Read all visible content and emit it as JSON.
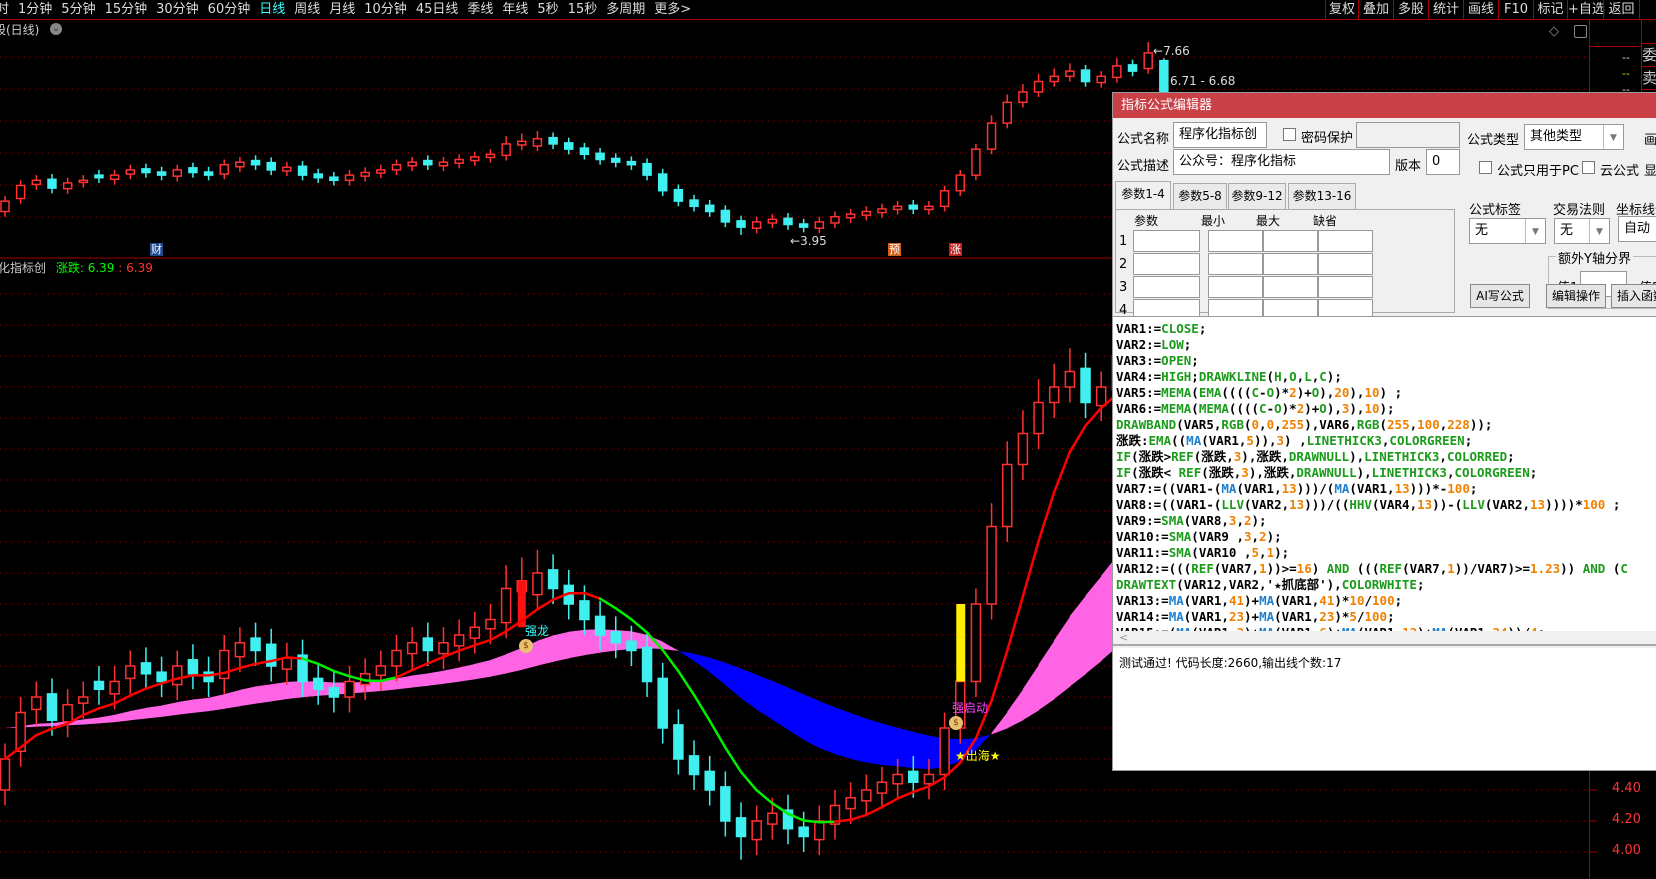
{
  "toolbar": {
    "periods": [
      "时",
      "1分钟",
      "5分钟",
      "15分钟",
      "30分钟",
      "60分钟",
      "日线",
      "周线",
      "月线",
      "10分钟",
      "45日线",
      "季线",
      "年线",
      "5秒",
      "15秒",
      "多周期",
      "更多>"
    ],
    "active": "日线",
    "buttons": [
      "复权",
      "叠加",
      "多股",
      "统计",
      "画线",
      "F10",
      "标记",
      "+自选",
      "返回"
    ]
  },
  "upper_panel": {
    "title": "股(日线)",
    "high_label": "7.66",
    "low_label": "3.95",
    "range_label": "6.71 - 6.68",
    "badges": [
      {
        "text": "财",
        "color": "#1a4a8a"
      },
      {
        "text": "预",
        "color": "#d0601a"
      },
      {
        "text": "涨",
        "color": "#c02020"
      }
    ]
  },
  "right_column": {
    "labels": [
      "委",
      "卖",
      "卖",
      "卖"
    ],
    "dashes": [
      "--",
      "--",
      "--"
    ]
  },
  "lower_panel": {
    "title": "化指标创",
    "line_name": "涨跌",
    "value1": ": 6.39",
    "value2": ": 6.39",
    "axis_labels": [
      "4.40",
      "4.20",
      "4.00"
    ],
    "annotations": {
      "strong_dragon": "强龙",
      "strong_start": "强启动",
      "out_sea": "★出海★"
    }
  },
  "chart_data": {
    "type": "candlestick",
    "open": [
      4.4,
      4.65,
      4.92,
      5.02,
      4.84,
      4.96,
      5.1,
      5.02,
      5.12,
      5.22,
      5.16,
      5.08,
      5.24,
      5.16,
      5.12,
      5.26,
      5.38,
      5.34,
      5.18,
      5.27,
      5.12,
      5.06,
      5.0,
      5.08,
      5.14,
      5.2,
      5.28,
      5.38,
      5.28,
      5.33,
      5.38,
      5.44,
      5.48,
      5.68,
      5.66,
      5.82,
      5.72,
      5.62,
      5.52,
      5.42,
      5.36,
      5.32,
      5.12,
      4.82,
      4.62,
      4.52,
      4.42,
      4.22,
      4.08,
      4.18,
      4.27,
      4.16,
      4.08,
      4.18,
      4.28,
      4.33,
      4.38,
      4.44,
      4.52,
      4.44,
      4.5,
      4.8,
      5.1,
      5.6,
      6.1,
      6.5,
      6.7,
      6.9,
      7.0,
      7.12,
      6.88,
      6.98,
      7.22,
      7.15,
      7.3
    ],
    "high": [
      4.7,
      5.0,
      5.1,
      5.12,
      5.05,
      5.1,
      5.2,
      5.2,
      5.3,
      5.32,
      5.26,
      5.3,
      5.34,
      5.26,
      5.4,
      5.45,
      5.48,
      5.44,
      5.35,
      5.37,
      5.22,
      5.16,
      5.2,
      5.25,
      5.3,
      5.4,
      5.45,
      5.48,
      5.45,
      5.5,
      5.55,
      5.6,
      5.85,
      5.9,
      5.95,
      5.92,
      5.82,
      5.72,
      5.62,
      5.52,
      5.46,
      5.42,
      5.22,
      4.92,
      4.72,
      4.62,
      4.52,
      4.32,
      4.3,
      4.35,
      4.37,
      4.26,
      4.3,
      4.4,
      4.45,
      4.5,
      4.55,
      4.6,
      4.62,
      4.6,
      4.9,
      5.2,
      5.7,
      6.25,
      6.65,
      6.85,
      7.05,
      7.15,
      7.25,
      7.22,
      7.1,
      7.35,
      7.32,
      7.66,
      7.35
    ],
    "low": [
      4.3,
      4.55,
      4.82,
      4.75,
      4.74,
      4.86,
      4.95,
      4.92,
      5.02,
      5.05,
      5.0,
      4.98,
      5.05,
      5.0,
      5.02,
      5.16,
      5.2,
      5.1,
      5.08,
      5.0,
      4.95,
      4.9,
      4.9,
      4.98,
      5.04,
      5.1,
      5.18,
      5.2,
      5.18,
      5.23,
      5.28,
      5.34,
      5.38,
      5.58,
      5.56,
      5.6,
      5.5,
      5.4,
      5.3,
      5.25,
      5.2,
      5.0,
      4.7,
      4.5,
      4.4,
      4.3,
      4.1,
      3.95,
      3.98,
      4.08,
      4.05,
      4.0,
      3.98,
      4.08,
      4.18,
      4.23,
      4.28,
      4.34,
      4.35,
      4.34,
      4.4,
      4.7,
      5.0,
      5.5,
      6.0,
      6.4,
      6.6,
      6.8,
      6.9,
      6.8,
      6.78,
      6.88,
      7.0,
      7.05,
      6.6
    ],
    "close": [
      4.6,
      4.9,
      5.0,
      4.85,
      4.95,
      5.0,
      5.05,
      5.1,
      5.2,
      5.15,
      5.1,
      5.2,
      5.15,
      5.1,
      5.3,
      5.35,
      5.3,
      5.2,
      5.25,
      5.1,
      5.05,
      5.0,
      5.1,
      5.15,
      5.2,
      5.3,
      5.35,
      5.3,
      5.35,
      5.4,
      5.45,
      5.5,
      5.7,
      5.75,
      5.8,
      5.7,
      5.6,
      5.5,
      5.4,
      5.35,
      5.3,
      5.1,
      4.8,
      4.6,
      4.5,
      4.4,
      4.2,
      4.1,
      4.2,
      4.25,
      4.15,
      4.1,
      4.2,
      4.3,
      4.35,
      4.4,
      4.45,
      4.5,
      4.45,
      4.5,
      4.8,
      5.1,
      5.6,
      6.1,
      6.5,
      6.7,
      6.9,
      7.0,
      7.1,
      6.9,
      7.0,
      7.2,
      7.1,
      7.45,
      6.68
    ],
    "colors": {
      "up": "#ff3030",
      "down": "#40f0f0",
      "band_up": "#0000ff",
      "band_down": "#ff64e4",
      "line_up": "#ff0000",
      "line_down": "#00ee00",
      "grid": "#a00000"
    },
    "grid": true
  },
  "editor": {
    "title": "指标公式编辑器",
    "name_label": "公式名称",
    "name_value": "程序化指标创",
    "password_label": "密码保护",
    "desc_label": "公式描述",
    "desc_value": "公众号：程序化指标",
    "version_label": "版本",
    "version_value": "0",
    "type_label": "公式类型",
    "type_value": "其他类型",
    "draw_label": "画",
    "pc_only_label": "公式只用于PC",
    "cloud_label": "云公式",
    "show_label": "显",
    "tabs": [
      "参数1-4",
      "参数5-8",
      "参数9-12",
      "参数13-16"
    ],
    "param_headers": [
      "参数",
      "最小",
      "最大",
      "缺省"
    ],
    "row_numbers": [
      "1",
      "2",
      "3",
      "4"
    ],
    "tag_label": "公式标签",
    "tag_value": "无",
    "rule_label": "交易法则",
    "rule_value": "无",
    "axis_label": "坐标线位",
    "axis_value": "自动",
    "yaxis_group": "额外Y轴分界",
    "val1_label": "值1",
    "val2_label": "值2",
    "buttons": [
      "AI写公式",
      "编辑操作",
      "插入函数"
    ],
    "code": [
      "VAR1:=CLOSE;",
      "VAR2:=LOW;",
      "VAR3:=OPEN;",
      "VAR4:=HIGH;DRAWKLINE(H,O,L,C);",
      "VAR5:=MEMA(EMA((((C-O)*2)+O),20),10) ;",
      "VAR6:=MEMA(MEMA((((C-O)*2)+O),3),10);",
      "DRAWBAND(VAR5,RGB(0,0,255),VAR6,RGB(255,100,228));",
      "涨跌:EMA((MA(VAR1,5)),3) ,LINETHICK3,COLORGREEN;",
      "IF(涨跌>REF(涨跌,3),涨跌,DRAWNULL),LINETHICK3,COLORRED;",
      "IF(涨跌< REF(涨跌,3),涨跌,DRAWNULL),LINETHICK3,COLORGREEN;",
      "VAR7:=((VAR1-(MA(VAR1,13)))/(MA(VAR1,13)))*-100;",
      "VAR8:=((VAR1-(LLV(VAR2,13)))/((HHV(VAR4,13))-(LLV(VAR2,13))))*100 ;",
      "VAR9:=SMA(VAR8,3,2);",
      "VAR10:=SMA(VAR9 ,3,2);",
      "VAR11:=SMA(VAR10 ,5,1);",
      "VAR12:=(((REF(VAR7,1))>=16) AND (((REF(VAR7,1))/VAR7)>=1.23)) AND (C",
      "DRAWTEXT(VAR12,VAR2,'★抓底部'),COLORWHITE;",
      "VAR13:=MA(VAR1,41)+MA(VAR1,41)*10/100;",
      "VAR14:=MA(VAR1,23)+MA(VAR1,23)*5/100;",
      "VAR15:=(MA(VAR1,3)+MA(VAR1,6)+MA(VAR1,12)+MA(VAR1,24))/4;"
    ],
    "status": "测试通过! 代码长度:2660,输出线个数:17"
  }
}
